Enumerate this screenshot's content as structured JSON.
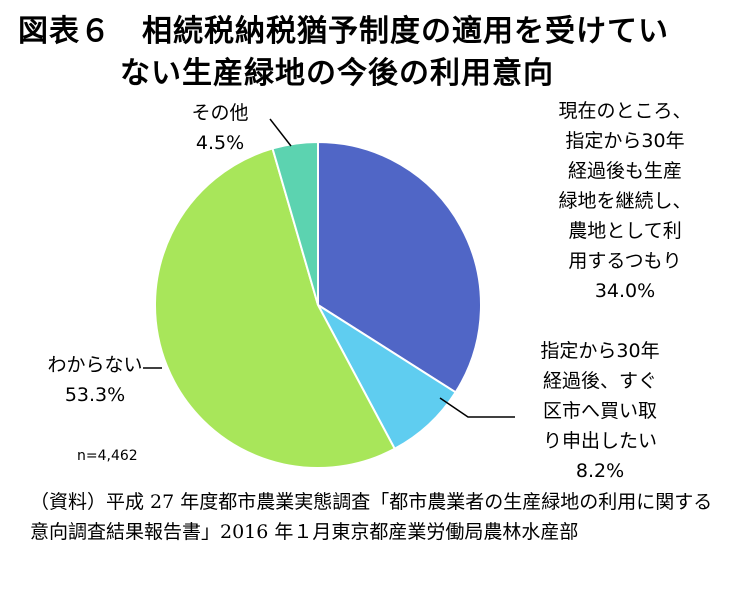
{
  "title_lines": [
    "図表６　相続税納税猶予制度の適用を受けてい",
    "ない生産緑地の今後の利用意向"
  ],
  "chart_data": {
    "type": "pie",
    "title": "図表６　相続税納税猶予制度の適用を受けていない生産緑地の今後の利用意向",
    "slices": [
      {
        "label_lines": [
          "現在のところ、",
          "指定から30年",
          "経過後も生産",
          "緑地を継続し、",
          "農地として利",
          "用するつもり"
        ],
        "value": 34.0,
        "value_text": "34.0%",
        "color": "#5066c6"
      },
      {
        "label_lines": [
          "指定から30年",
          "経過後、すぐ",
          "区市へ買い取",
          "り申出したい"
        ],
        "value": 8.2,
        "value_text": "8.2%",
        "color": "#5fcdf0"
      },
      {
        "label_lines": [
          "わからない"
        ],
        "value": 53.3,
        "value_text": "53.3%",
        "color": "#a8e65a"
      },
      {
        "label_lines": [
          "その他"
        ],
        "value": 4.5,
        "value_text": "4.5%",
        "color": "#5cd3b0"
      }
    ]
  },
  "sample_size": "n=4,462",
  "source": "（資料）平成 27 年度都市農業実態調査「都市農業者の生産緑地の利用に関する意向調査結果報告書」2016 年１月東京都産業労働局農林水産部"
}
